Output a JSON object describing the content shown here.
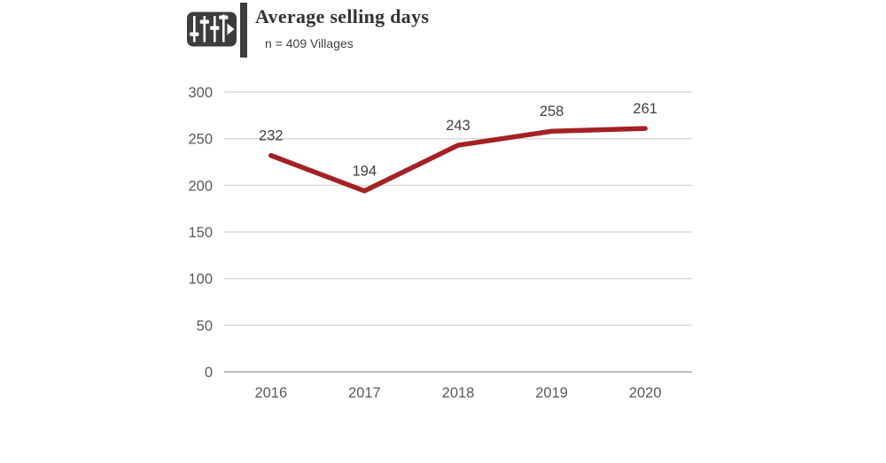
{
  "header": {
    "title": "Average selling days",
    "subtitle": "n = 409 Villages",
    "icon": "sliders-play-icon"
  },
  "colors": {
    "accent_dark": "#3d3d3d",
    "title_text": "#333333",
    "subtitle_text": "#3f3f3f",
    "series_line": "#a42126",
    "gridline": "#d9d9d9",
    "axis_baseline": "#bcbcbc",
    "tick_text": "#595959",
    "data_label_text": "#404040"
  },
  "chart_data": {
    "type": "line",
    "title": "Average selling days",
    "subtitle": "n = 409 Villages",
    "categories": [
      "2016",
      "2017",
      "2018",
      "2019",
      "2020"
    ],
    "values": [
      232,
      194,
      243,
      258,
      261
    ],
    "data_labels": [
      "232",
      "194",
      "243",
      "258",
      "261"
    ],
    "xlabel": "",
    "ylabel": "",
    "ylim": [
      0,
      300
    ],
    "yticks": [
      0,
      50,
      100,
      150,
      200,
      250,
      300
    ],
    "grid": "horizontal",
    "legend": "none"
  }
}
